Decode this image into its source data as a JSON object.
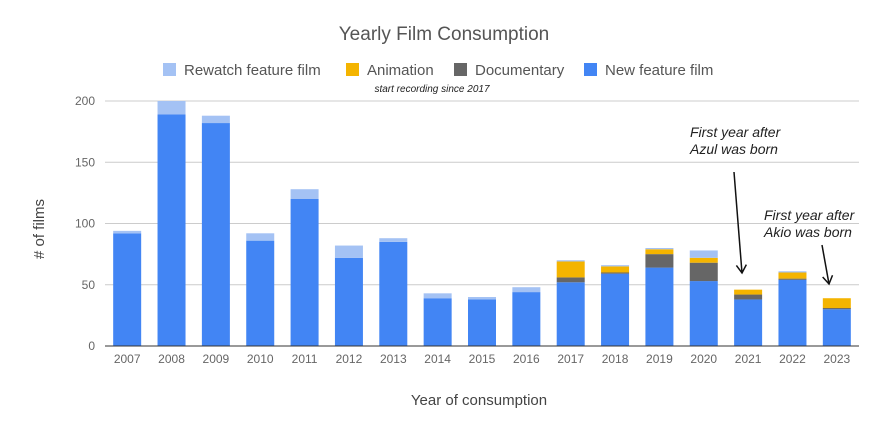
{
  "chart_data": {
    "type": "bar",
    "stacked": true,
    "title": "Yearly Film Consumption",
    "subtitle": "start recording since 2017",
    "xlabel": "Year of consumption",
    "ylabel": "# of films",
    "ylim": [
      0,
      200
    ],
    "yticks": [
      0,
      50,
      100,
      150,
      200
    ],
    "grid": true,
    "legend_position": "top",
    "categories": [
      "2007",
      "2008",
      "2009",
      "2010",
      "2011",
      "2012",
      "2013",
      "2014",
      "2015",
      "2016",
      "2017",
      "2018",
      "2019",
      "2020",
      "2021",
      "2022",
      "2023"
    ],
    "series": [
      {
        "name": "New feature film",
        "color": "#4285f4",
        "values": [
          92,
          189,
          182,
          86,
          120,
          72,
          85,
          39,
          38,
          44,
          52,
          59,
          64,
          53,
          38,
          54,
          30
        ]
      },
      {
        "name": "Documentary",
        "color": "#666666",
        "values": [
          0,
          0,
          0,
          0,
          0,
          0,
          0,
          0,
          0,
          0,
          4,
          1,
          11,
          15,
          4,
          1,
          1
        ]
      },
      {
        "name": "Animation",
        "color": "#f4b400",
        "values": [
          0,
          0,
          0,
          0,
          0,
          0,
          0,
          0,
          0,
          0,
          13,
          5,
          4,
          4,
          4,
          5,
          8
        ]
      },
      {
        "name": "Rewatch feature film",
        "color": "#a4c2f4",
        "values": [
          2,
          11,
          6,
          6,
          8,
          10,
          3,
          4,
          2,
          4,
          1,
          1,
          1,
          6,
          0,
          1,
          0
        ]
      }
    ],
    "legend_order": [
      "Rewatch feature film",
      "Animation",
      "Documentary",
      "New feature film"
    ],
    "annotations": [
      {
        "lines": [
          "First year after",
          "Azul was born"
        ],
        "target": "2021"
      },
      {
        "lines": [
          "First year after",
          "Akio was born"
        ],
        "target": "2023"
      }
    ]
  }
}
